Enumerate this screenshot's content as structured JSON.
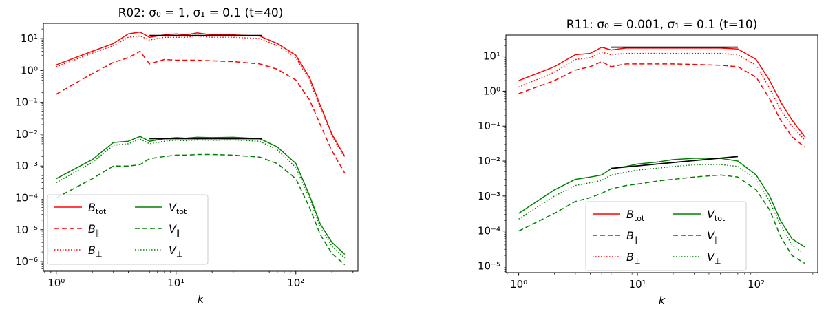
{
  "chart_data": [
    {
      "type": "line",
      "title": "R02: σ₀ = 1, σ₁ = 0.1 (t=40)",
      "xlabel": "k",
      "ylabel": "",
      "xscale": "log",
      "yscale": "log",
      "xlim": [
        0.78,
        330
      ],
      "ylim": [
        5e-07,
        30
      ],
      "xticks": [
        {
          "value": 1,
          "label": "10⁰"
        },
        {
          "value": 10,
          "label": "10¹"
        },
        {
          "value": 100,
          "label": "10²"
        }
      ],
      "yticks": [
        {
          "value": 10,
          "label": "10¹"
        },
        {
          "value": 1,
          "label": "10⁰"
        },
        {
          "value": 0.1,
          "label": "10⁻¹"
        },
        {
          "value": 0.01,
          "label": "10⁻²"
        },
        {
          "value": 0.001,
          "label": "10⁻³"
        },
        {
          "value": 0.0001,
          "label": "10⁻⁴"
        },
        {
          "value": 1e-05,
          "label": "10⁻⁵"
        },
        {
          "value": 1e-06,
          "label": "10⁻⁶"
        }
      ],
      "legend_position": "lower-left",
      "series": [
        {
          "name": "B_tot",
          "color": "#ff0000",
          "style": "solid",
          "x": [
            1,
            2,
            3,
            4,
            5,
            6,
            8,
            10,
            12,
            15,
            20,
            30,
            50,
            70,
            100,
            130,
            160,
            200,
            256
          ],
          "y": [
            1.5,
            4,
            7,
            14,
            16,
            11,
            13,
            14,
            13,
            15,
            13,
            13,
            12,
            7,
            3,
            0.6,
            0.08,
            0.01,
            0.002
          ]
        },
        {
          "name": "B_∥",
          "color": "#ff0000",
          "style": "dashed",
          "x": [
            1,
            2,
            3,
            4,
            5,
            6,
            8,
            10,
            12,
            15,
            20,
            30,
            50,
            70,
            100,
            130,
            160,
            200,
            256
          ],
          "y": [
            0.18,
            0.8,
            1.8,
            2.5,
            4,
            1.6,
            2.2,
            2.1,
            2.1,
            2.1,
            2,
            1.9,
            1.6,
            1.1,
            0.5,
            0.12,
            0.02,
            0.003,
            0.0006
          ]
        },
        {
          "name": "B_⊥",
          "color": "#ff0000",
          "style": "dotted",
          "x": [
            1,
            2,
            3,
            4,
            5,
            6,
            8,
            10,
            12,
            15,
            20,
            30,
            50,
            70,
            100,
            130,
            160,
            200,
            256
          ],
          "y": [
            1.3,
            3.5,
            6,
            11,
            12,
            9,
            11,
            11,
            11,
            12,
            11,
            11,
            10,
            6,
            2.5,
            0.5,
            0.07,
            0.009,
            0.0018
          ]
        },
        {
          "name": "V_tot",
          "color": "#008000",
          "style": "solid",
          "x": [
            1,
            2,
            3,
            4,
            5,
            6,
            8,
            10,
            12,
            15,
            20,
            30,
            50,
            70,
            100,
            130,
            160,
            200,
            256
          ],
          "y": [
            0.0004,
            0.0016,
            0.0055,
            0.006,
            0.0085,
            0.006,
            0.0072,
            0.0078,
            0.0075,
            0.008,
            0.0078,
            0.008,
            0.0072,
            0.004,
            0.0012,
            0.00012,
            1.5e-05,
            4e-06,
            1.7e-06
          ]
        },
        {
          "name": "V_∥",
          "color": "#008000",
          "style": "dashed",
          "x": [
            1,
            2,
            3,
            4,
            5,
            6,
            8,
            10,
            12,
            15,
            20,
            30,
            50,
            70,
            100,
            130,
            160,
            200,
            256
          ],
          "y": [
            0.0001,
            0.0004,
            0.001,
            0.001,
            0.0011,
            0.0017,
            0.002,
            0.0022,
            0.0022,
            0.0023,
            0.0023,
            0.0022,
            0.0019,
            0.0012,
            0.0004,
            5e-05,
            7e-06,
            1.8e-06,
            8e-07
          ]
        },
        {
          "name": "V_⊥",
          "color": "#008000",
          "style": "dotted",
          "x": [
            1,
            2,
            3,
            4,
            5,
            6,
            8,
            10,
            12,
            15,
            20,
            30,
            50,
            70,
            100,
            130,
            160,
            200,
            256
          ],
          "y": [
            0.0003,
            0.0013,
            0.0045,
            0.005,
            0.007,
            0.005,
            0.006,
            0.0065,
            0.0062,
            0.0066,
            0.0064,
            0.0066,
            0.006,
            0.0032,
            0.0009,
            0.0001,
            1.2e-05,
            3e-06,
            1.3e-06
          ]
        },
        {
          "name": "fit-B",
          "color": "#000000",
          "style": "solid",
          "legend": false,
          "x": [
            6,
            52
          ],
          "y": [
            12.5,
            12.5
          ]
        },
        {
          "name": "fit-V",
          "color": "#000000",
          "style": "solid",
          "legend": false,
          "x": [
            6,
            52
          ],
          "y": [
            0.0072,
            0.0072
          ]
        }
      ]
    },
    {
      "type": "line",
      "title": "R11: σ₀ = 0.001, σ₁ = 0.1 (t=10)",
      "xlabel": "k",
      "ylabel": "",
      "xscale": "log",
      "yscale": "log",
      "xlim": [
        0.78,
        330
      ],
      "ylim": [
        6.5e-06,
        40
      ],
      "xticks": [
        {
          "value": 1,
          "label": "10⁰"
        },
        {
          "value": 10,
          "label": "10¹"
        },
        {
          "value": 100,
          "label": "10²"
        }
      ],
      "yticks": [
        {
          "value": 10,
          "label": "10¹"
        },
        {
          "value": 1,
          "label": "10⁰"
        },
        {
          "value": 0.1,
          "label": "10⁻¹"
        },
        {
          "value": 0.01,
          "label": "10⁻²"
        },
        {
          "value": 0.001,
          "label": "10⁻³"
        },
        {
          "value": 0.0001,
          "label": "10⁻⁴"
        },
        {
          "value": 1e-05,
          "label": "10⁻⁵"
        }
      ],
      "legend_position": "lower-center",
      "series": [
        {
          "name": "B_tot",
          "color": "#ff0000",
          "style": "solid",
          "x": [
            1,
            2,
            3,
            4,
            5,
            6,
            8,
            10,
            15,
            20,
            30,
            50,
            70,
            100,
            130,
            160,
            200,
            256
          ],
          "y": [
            2,
            5,
            11,
            12,
            18,
            15,
            17,
            17,
            17,
            17,
            17,
            17,
            16,
            8,
            2,
            0.5,
            0.15,
            0.05
          ]
        },
        {
          "name": "B_∥",
          "color": "#ff0000",
          "style": "dashed",
          "x": [
            1,
            2,
            3,
            4,
            5,
            6,
            8,
            10,
            15,
            20,
            30,
            50,
            70,
            100,
            130,
            160,
            200,
            256
          ],
          "y": [
            0.85,
            2,
            4,
            5,
            7,
            5,
            6,
            6,
            6,
            6,
            5.8,
            5.5,
            5,
            2.5,
            0.6,
            0.15,
            0.05,
            0.025
          ]
        },
        {
          "name": "B_⊥",
          "color": "#ff0000",
          "style": "dotted",
          "x": [
            1,
            2,
            3,
            4,
            5,
            6,
            8,
            10,
            15,
            20,
            30,
            50,
            70,
            100,
            130,
            160,
            200,
            256
          ],
          "y": [
            1.3,
            3.5,
            8,
            9,
            13,
            11,
            12,
            12,
            12,
            12,
            12,
            12,
            11,
            5.5,
            1.2,
            0.3,
            0.1,
            0.04
          ]
        },
        {
          "name": "V_tot",
          "color": "#008000",
          "style": "solid",
          "x": [
            1,
            2,
            3,
            4,
            5,
            6,
            8,
            10,
            15,
            20,
            30,
            50,
            70,
            100,
            130,
            160,
            200,
            256
          ],
          "y": [
            0.00032,
            0.0015,
            0.003,
            0.0035,
            0.004,
            0.006,
            0.007,
            0.0082,
            0.0095,
            0.011,
            0.012,
            0.012,
            0.01,
            0.004,
            0.001,
            0.0002,
            6e-05,
            3.5e-05
          ]
        },
        {
          "name": "V_∥",
          "color": "#008000",
          "style": "dashed",
          "x": [
            1,
            2,
            3,
            4,
            5,
            6,
            8,
            10,
            15,
            20,
            30,
            50,
            70,
            100,
            130,
            160,
            200,
            256
          ],
          "y": [
            0.0001,
            0.00032,
            0.0007,
            0.0009,
            0.0012,
            0.0016,
            0.002,
            0.0022,
            0.0027,
            0.003,
            0.0035,
            0.004,
            0.0035,
            0.0015,
            0.0004,
            7e-05,
            2e-05,
            1.2e-05
          ]
        },
        {
          "name": "V_⊥",
          "color": "#008000",
          "style": "dotted",
          "x": [
            1,
            2,
            3,
            4,
            5,
            6,
            8,
            10,
            15,
            20,
            30,
            50,
            70,
            100,
            130,
            160,
            200,
            256
          ],
          "y": [
            0.00022,
            0.001,
            0.002,
            0.0024,
            0.0028,
            0.004,
            0.0048,
            0.0055,
            0.0063,
            0.007,
            0.0078,
            0.008,
            0.007,
            0.003,
            0.0007,
            0.00015,
            4e-05,
            2.2e-05
          ]
        },
        {
          "name": "fit-B",
          "color": "#000000",
          "style": "solid",
          "legend": false,
          "x": [
            6,
            70
          ],
          "y": [
            18,
            18
          ]
        },
        {
          "name": "fit-V",
          "color": "#000000",
          "style": "solid",
          "legend": false,
          "x": [
            6,
            70
          ],
          "y": [
            0.0062,
            0.0135
          ]
        }
      ]
    }
  ],
  "legend_labels": [
    {
      "key": "B_tot",
      "base": "B",
      "sub": "tot"
    },
    {
      "key": "B_∥",
      "base": "B",
      "sub": "∥"
    },
    {
      "key": "B_⊥",
      "base": "B",
      "sub": "⊥"
    },
    {
      "key": "V_tot",
      "base": "V",
      "sub": "tot"
    },
    {
      "key": "V_∥",
      "base": "V",
      "sub": "∥"
    },
    {
      "key": "V_⊥",
      "base": "V",
      "sub": "⊥"
    }
  ]
}
